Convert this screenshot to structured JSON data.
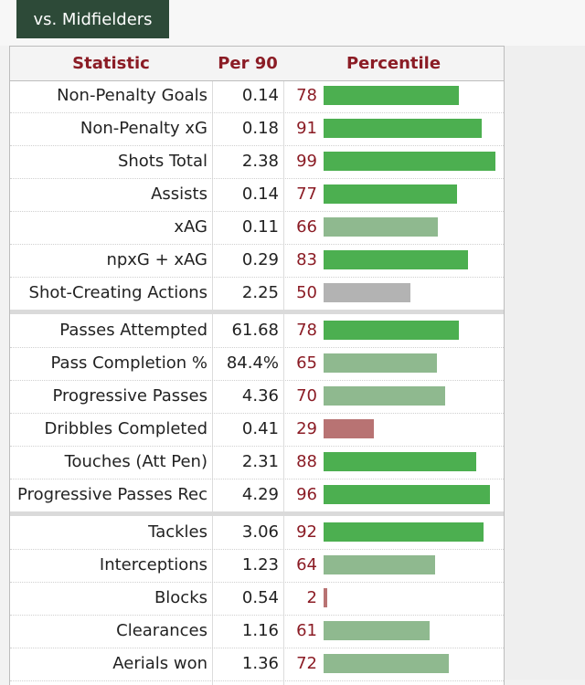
{
  "tab": {
    "label": "vs. Midfielders"
  },
  "header": {
    "statistic": "Statistic",
    "per90": "Per 90",
    "percentile": "Percentile"
  },
  "groups": [
    [
      {
        "stat": "Non-Penalty Goals",
        "per90": "0.14",
        "pct": 78
      },
      {
        "stat": "Non-Penalty xG",
        "per90": "0.18",
        "pct": 91
      },
      {
        "stat": "Shots Total",
        "per90": "2.38",
        "pct": 99
      },
      {
        "stat": "Assists",
        "per90": "0.14",
        "pct": 77
      },
      {
        "stat": "xAG",
        "per90": "0.11",
        "pct": 66
      },
      {
        "stat": "npxG + xAG",
        "per90": "0.29",
        "pct": 83
      },
      {
        "stat": "Shot-Creating Actions",
        "per90": "2.25",
        "pct": 50
      }
    ],
    [
      {
        "stat": "Passes Attempted",
        "per90": "61.68",
        "pct": 78
      },
      {
        "stat": "Pass Completion %",
        "per90": "84.4%",
        "pct": 65
      },
      {
        "stat": "Progressive Passes",
        "per90": "4.36",
        "pct": 70
      },
      {
        "stat": "Dribbles Completed",
        "per90": "0.41",
        "pct": 29
      },
      {
        "stat": "Touches (Att Pen)",
        "per90": "2.31",
        "pct": 88
      },
      {
        "stat": "Progressive Passes Rec",
        "per90": "4.29",
        "pct": 96
      }
    ],
    [
      {
        "stat": "Tackles",
        "per90": "3.06",
        "pct": 92
      },
      {
        "stat": "Interceptions",
        "per90": "1.23",
        "pct": 64
      },
      {
        "stat": "Blocks",
        "per90": "0.54",
        "pct": 2
      },
      {
        "stat": "Clearances",
        "per90": "1.16",
        "pct": 61
      },
      {
        "stat": "Aerials won",
        "per90": "1.36",
        "pct": 72
      }
    ]
  ],
  "colors": {
    "high": "#4caf50",
    "mid": "#8fb98f",
    "average": "#b3b3b3",
    "low": "#b87373",
    "accent": "#8b1c25",
    "tab": "#2d4a38"
  }
}
